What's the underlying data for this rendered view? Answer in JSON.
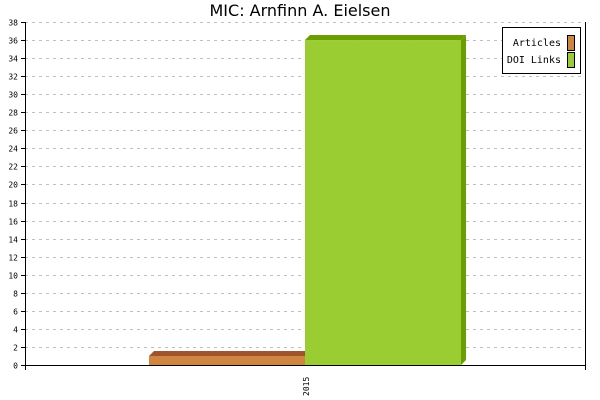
{
  "chart_data": {
    "type": "bar",
    "title": "MIC: Arnfinn A. Eielsen",
    "categories": [
      "2015"
    ],
    "series": [
      {
        "name": "Articles",
        "values": [
          1
        ],
        "color": "#cd853f",
        "top_color": "#a0522d"
      },
      {
        "name": "DOI Links",
        "values": [
          36
        ],
        "color": "#9acd32",
        "top_color": "#6b9e00"
      }
    ],
    "ylim": [
      0,
      38
    ],
    "ytick_step": 2,
    "grid": true,
    "legend_position": "top-right",
    "xlabel": "",
    "ylabel": ""
  }
}
